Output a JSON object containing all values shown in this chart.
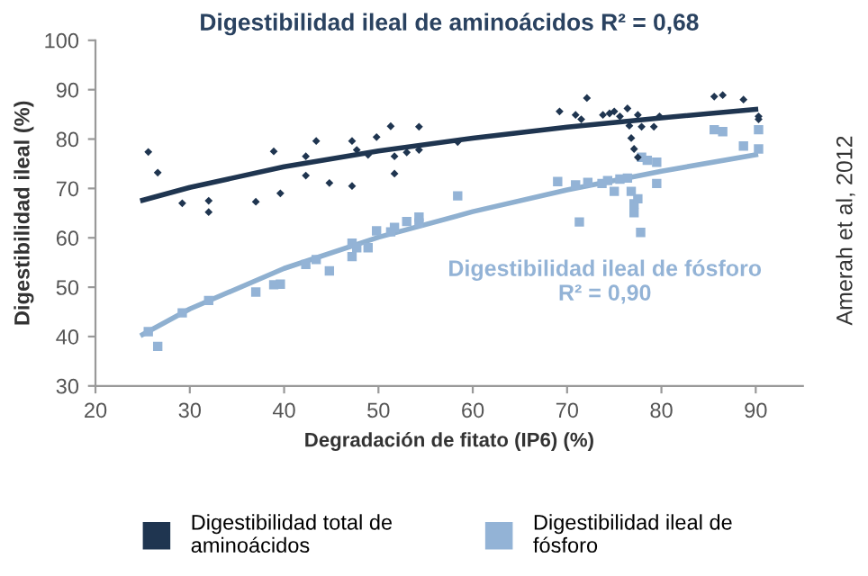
{
  "chart_data": {
    "type": "scatter",
    "title": "Digestibilidad ileal de aminoácidos R² = 0,68",
    "xlabel": "Degradación de fitato (IP6) (%)",
    "ylabel": "Digestibilidad ileal (%)",
    "xlim": [
      20,
      95
    ],
    "ylim": [
      30,
      100
    ],
    "xticks": [
      20,
      30,
      40,
      50,
      60,
      70,
      80,
      90
    ],
    "yticks": [
      30,
      40,
      50,
      60,
      70,
      80,
      90,
      100
    ],
    "grid": false,
    "legend": "bottom",
    "annotations": [
      "Digestibilidad ileal de fósforo\nR² = 0,90",
      "Amerah et al, 2012"
    ],
    "series": [
      {
        "name": "Digestibilidad total de\naminoácidos",
        "marker": "diamond",
        "color": "#1f3550",
        "x": [
          25.6,
          26.6,
          29.2,
          32.0,
          32.0,
          37.0,
          38.9,
          39.6,
          42.3,
          42.3,
          43.4,
          44.8,
          47.2,
          47.2,
          47.7,
          48.9,
          49.8,
          51.3,
          51.7,
          51.7,
          53.0,
          54.3,
          54.3,
          58.4,
          69.2,
          70.9,
          71.5,
          72.1,
          73.8,
          74.5,
          75.0,
          75.6,
          76.4,
          76.6,
          77.5,
          77.9,
          79.2,
          79.8,
          76.8,
          77.1,
          77.5,
          85.6,
          86.5,
          88.7,
          90.3,
          90.3
        ],
        "values": [
          77.4,
          73.2,
          67.0,
          67.5,
          65.2,
          67.3,
          77.5,
          69.0,
          76.5,
          72.6,
          79.6,
          71.1,
          79.6,
          70.5,
          77.8,
          76.8,
          80.4,
          82.6,
          76.5,
          73.0,
          77.3,
          82.5,
          77.8,
          79.4,
          85.6,
          84.9,
          84.0,
          88.3,
          84.9,
          85.2,
          85.6,
          84.6,
          86.2,
          82.7,
          84.9,
          82.5,
          82.5,
          84.6,
          80.2,
          78.0,
          76.3,
          88.6,
          88.9,
          88.0,
          84.6,
          84.0
        ]
      },
      {
        "name": "Digestibilidad ileal de\nfósforo",
        "marker": "square",
        "color": "#93b3d6",
        "x": [
          25.6,
          26.6,
          29.2,
          32.0,
          37.0,
          38.9,
          39.6,
          42.3,
          43.4,
          44.8,
          47.2,
          47.2,
          47.7,
          48.9,
          49.8,
          51.3,
          51.7,
          53.0,
          54.3,
          54.3,
          58.4,
          69.0,
          70.9,
          71.3,
          72.2,
          73.7,
          74.3,
          75.0,
          75.6,
          76.4,
          76.8,
          77.1,
          77.5,
          77.1,
          77.8,
          77.9,
          78.5,
          79.5,
          79.5,
          85.6,
          86.5,
          88.7,
          90.3,
          90.3
        ],
        "values": [
          41.0,
          38.0,
          44.8,
          47.3,
          49.0,
          50.5,
          50.6,
          54.6,
          55.6,
          53.3,
          56.2,
          58.9,
          58.0,
          58.0,
          61.4,
          61.2,
          62.1,
          63.3,
          63.0,
          64.2,
          68.5,
          71.4,
          70.7,
          63.2,
          71.2,
          71.0,
          71.6,
          69.4,
          71.9,
          72.1,
          69.4,
          66.9,
          67.9,
          65.1,
          61.1,
          76.3,
          75.7,
          75.3,
          71.0,
          81.9,
          81.5,
          78.6,
          81.9,
          78.0
        ]
      },
      {
        "type": "line",
        "marker": "none",
        "color": "#1f3550",
        "x": [
          25,
          30,
          40,
          50,
          60,
          70,
          80,
          90
        ],
        "values": [
          67.6,
          70.2,
          74.4,
          77.6,
          80.2,
          82.4,
          84.3,
          86.0
        ]
      },
      {
        "type": "line",
        "marker": "none",
        "color": "#8fb0d0",
        "x": [
          25,
          30,
          40,
          50,
          60,
          70,
          80,
          90
        ],
        "values": [
          40.4,
          45.6,
          53.8,
          60.1,
          65.3,
          69.7,
          73.5,
          76.8
        ]
      }
    ]
  }
}
